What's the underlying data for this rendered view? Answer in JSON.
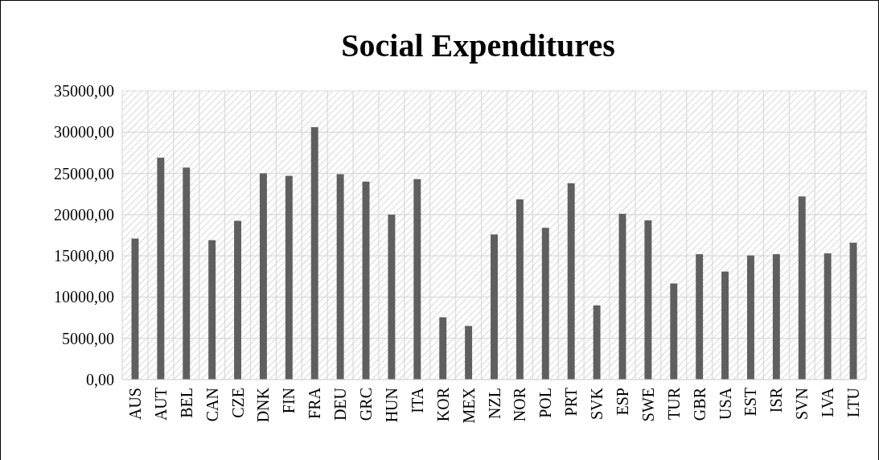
{
  "chart_data": {
    "type": "bar",
    "title": "Social Expenditures",
    "categories": [
      "AUS",
      "AUT",
      "BEL",
      "CAN",
      "CZE",
      "DNK",
      "FIN",
      "FRA",
      "DEU",
      "GRC",
      "HUN",
      "ITA",
      "KOR",
      "MEX",
      "NZL",
      "NOR",
      "POL",
      "PRT",
      "SVK",
      "ESP",
      "SWE",
      "TUR",
      "GBR",
      "USA",
      "EST",
      "ISR",
      "SVN",
      "LVA",
      "LTU"
    ],
    "values": [
      17100,
      26900,
      25700,
      16900,
      19250,
      25000,
      24700,
      30600,
      24900,
      24000,
      20000,
      24300,
      7550,
      6500,
      17600,
      21850,
      18400,
      23800,
      9000,
      20100,
      19300,
      11650,
      15200,
      13100,
      15050,
      15200,
      22200,
      15300,
      16600
    ],
    "color": "#5f5f5f",
    "ylim": [
      0,
      35000
    ],
    "yticks": [
      {
        "value": 0,
        "label": "0,00"
      },
      {
        "value": 5000,
        "label": "5000,00"
      },
      {
        "value": 10000,
        "label": "10000,00"
      },
      {
        "value": 15000,
        "label": "15000,00"
      },
      {
        "value": 20000,
        "label": "20000,00"
      },
      {
        "value": 25000,
        "label": "25000,00"
      },
      {
        "value": 30000,
        "label": "30000,00"
      },
      {
        "value": 35000,
        "label": "35000,00"
      }
    ],
    "grid": true
  }
}
